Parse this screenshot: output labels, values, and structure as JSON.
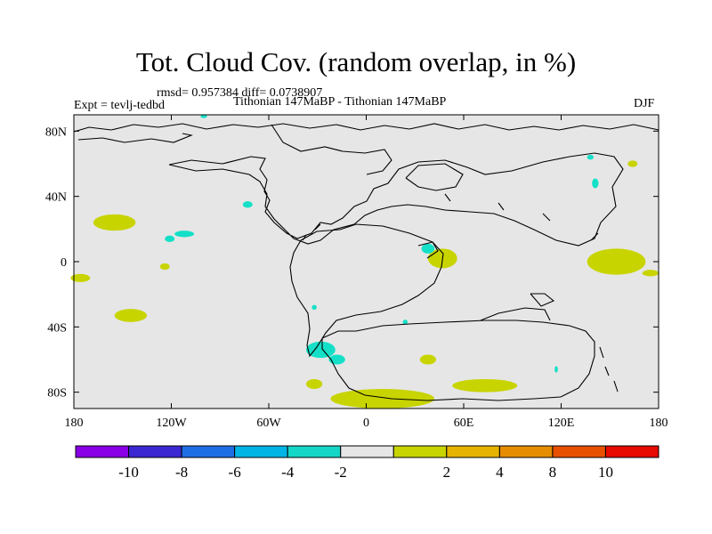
{
  "title": "Tot. Cloud Cov. (random overlap, in %)",
  "stats_line": "rmsd= 0.957384 diff= 0.0738907",
  "expt_label": "Expt = tevlj-tedbd",
  "comparison_label": "Tithonian 147MaBP - Tithonian 147MaBP",
  "season_label": "DJF",
  "colors": {
    "background_field": "#e6e6e6",
    "coastline": "#000000",
    "positive_2_4": "#c8d400",
    "negative_2_4": "#14e0c8"
  },
  "chart_data": {
    "type": "heatmap",
    "projection": "cylindrical-equidistant",
    "xlim": [
      -180,
      180
    ],
    "ylim": [
      -90,
      90
    ],
    "x_ticks": [
      {
        "value": -180,
        "label": "180"
      },
      {
        "value": -120,
        "label": "120W"
      },
      {
        "value": -60,
        "label": "60W"
      },
      {
        "value": 0,
        "label": "0"
      },
      {
        "value": 60,
        "label": "60E"
      },
      {
        "value": 120,
        "label": "120E"
      },
      {
        "value": 180,
        "label": "180"
      }
    ],
    "y_ticks": [
      {
        "value": 80,
        "label": "80N"
      },
      {
        "value": 40,
        "label": "40N"
      },
      {
        "value": 0,
        "label": "0"
      },
      {
        "value": -40,
        "label": "40S"
      },
      {
        "value": -80,
        "label": "80S"
      }
    ],
    "colorbar": {
      "colors": [
        "#8a00e6",
        "#3c28d2",
        "#1e6ee6",
        "#00b4e6",
        "#14d7c8",
        "#e6e6e6",
        "#c8d400",
        "#e6b400",
        "#e68c00",
        "#e65000",
        "#e60a00"
      ],
      "labels": [
        "-10",
        "-8",
        "-6",
        "-4",
        "-2",
        "2",
        "4",
        "8",
        "10"
      ]
    },
    "anomaly_regions": [
      {
        "sign": "positive",
        "lon": -155,
        "lat": 24,
        "rx": 13,
        "ry": 5
      },
      {
        "sign": "positive",
        "lon": -176,
        "lat": -10,
        "rx": 6,
        "ry": 2.5
      },
      {
        "sign": "positive",
        "lon": -145,
        "lat": -33,
        "rx": 10,
        "ry": 4
      },
      {
        "sign": "positive",
        "lon": -124,
        "lat": -3,
        "rx": 3,
        "ry": 2
      },
      {
        "sign": "positive",
        "lon": 47,
        "lat": 2,
        "rx": 9,
        "ry": 6
      },
      {
        "sign": "positive",
        "lon": 154,
        "lat": 0,
        "rx": 18,
        "ry": 8
      },
      {
        "sign": "positive",
        "lon": 10,
        "lat": -84,
        "rx": 32,
        "ry": 6
      },
      {
        "sign": "positive",
        "lon": 73,
        "lat": -76,
        "rx": 20,
        "ry": 4
      },
      {
        "sign": "positive",
        "lon": 38,
        "lat": -60,
        "rx": 5,
        "ry": 3
      },
      {
        "sign": "positive",
        "lon": -32,
        "lat": -75,
        "rx": 5,
        "ry": 3
      },
      {
        "sign": "positive",
        "lon": 175,
        "lat": -7,
        "rx": 5,
        "ry": 2
      },
      {
        "sign": "positive",
        "lon": 164,
        "lat": 60,
        "rx": 3,
        "ry": 2
      },
      {
        "sign": "negative",
        "lon": -28,
        "lat": -54,
        "rx": 9,
        "ry": 5
      },
      {
        "sign": "negative",
        "lon": -18,
        "lat": -60,
        "rx": 5,
        "ry": 3
      },
      {
        "sign": "negative",
        "lon": -112,
        "lat": 17,
        "rx": 6,
        "ry": 2
      },
      {
        "sign": "negative",
        "lon": -121,
        "lat": 14,
        "rx": 3,
        "ry": 2
      },
      {
        "sign": "negative",
        "lon": -73,
        "lat": 35,
        "rx": 3,
        "ry": 2
      },
      {
        "sign": "negative",
        "lon": 38,
        "lat": 8,
        "rx": 4,
        "ry": 3
      },
      {
        "sign": "negative",
        "lon": 141,
        "lat": 48,
        "rx": 2,
        "ry": 3
      },
      {
        "sign": "negative",
        "lon": 138,
        "lat": 64,
        "rx": 2,
        "ry": 1.5
      },
      {
        "sign": "negative",
        "lon": -100,
        "lat": 89,
        "rx": 2,
        "ry": 1
      },
      {
        "sign": "negative",
        "lon": -32,
        "lat": -28,
        "rx": 1.5,
        "ry": 1.5
      },
      {
        "sign": "negative",
        "lon": 24,
        "lat": -37,
        "rx": 1.5,
        "ry": 1.5
      },
      {
        "sign": "negative",
        "lon": 117,
        "lat": -66,
        "rx": 1,
        "ry": 2
      }
    ]
  }
}
